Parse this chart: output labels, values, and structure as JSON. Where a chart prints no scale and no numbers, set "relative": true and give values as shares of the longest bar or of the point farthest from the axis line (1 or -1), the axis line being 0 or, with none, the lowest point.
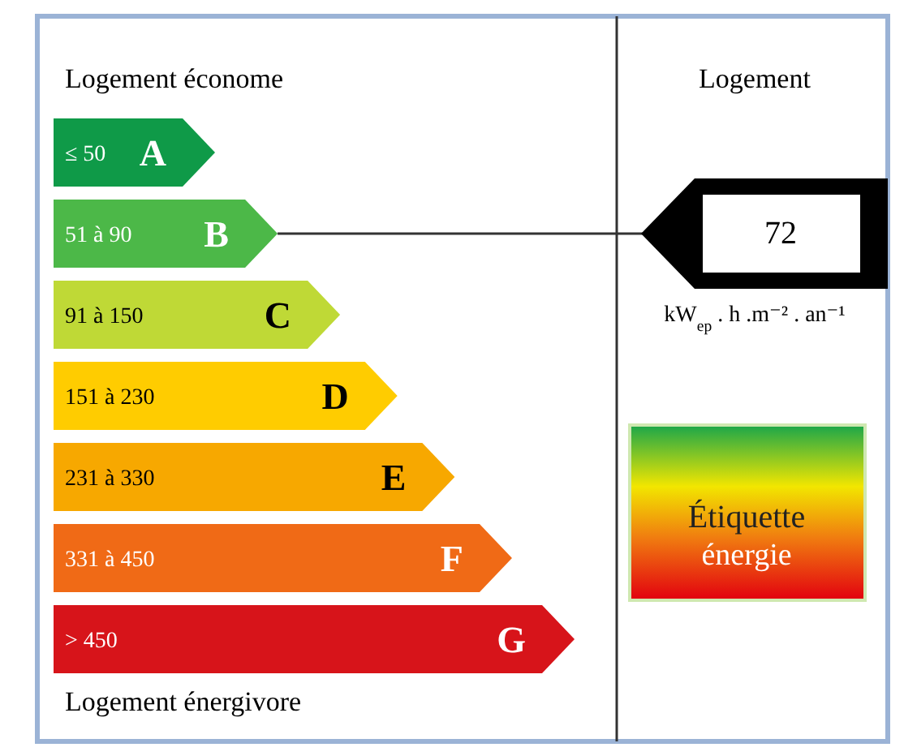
{
  "chart_data": {
    "type": "bar",
    "orientation": "horizontal",
    "relative": true,
    "categories": [
      "A",
      "B",
      "C",
      "D",
      "E",
      "F",
      "G"
    ],
    "values": [
      0.31,
      0.43,
      0.55,
      0.66,
      0.77,
      0.88,
      1
    ],
    "colors": [
      "#0f9a48",
      "#4cb848",
      "#bfd936",
      "#ffcc00",
      "#f7a800",
      "#f06a16",
      "#d7141a"
    ],
    "ref_lines": [
      {
        "axis": "y",
        "value": "B",
        "label": "72",
        "color": "#333333"
      }
    ],
    "annotations": [
      "Logement économe",
      "Logement énergivore",
      "Logement",
      "kW$_{ep}$ . h .m⁻² . an⁻¹",
      "Étiquette énergie",
      "≤ 50",
      "51 à 90",
      "91 à 150",
      "151 à 230",
      "231 à 330",
      "331 à 450",
      "> 450"
    ]
  }
}
